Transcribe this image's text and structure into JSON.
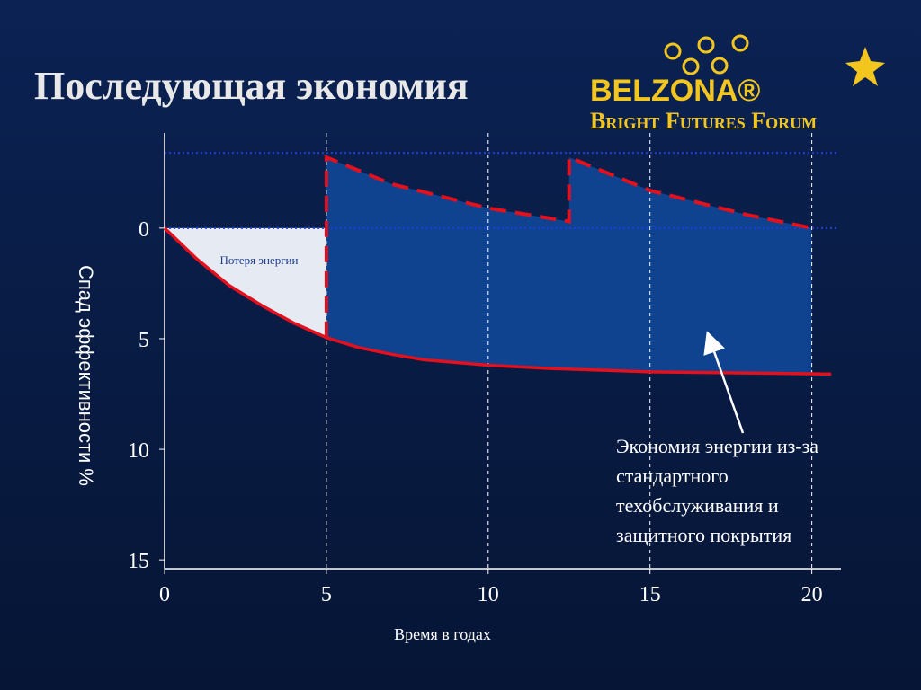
{
  "header": {
    "title": "Последующая экономия",
    "logo": "BELZONA®",
    "tagline": "Bright Futures Forum"
  },
  "chart_data": {
    "type": "line",
    "x_label": "Время в годах",
    "y_label": "Спад эффективности %",
    "xlim": [
      0,
      20.9
    ],
    "xticks": [
      0,
      5,
      10,
      15,
      20
    ],
    "ylim": [
      -4.3,
      15.4
    ],
    "yticks": [
      0,
      5,
      10,
      15
    ],
    "y_inverted": true,
    "x_grid": true,
    "hlines": [
      -3.4,
      0
    ],
    "series": [
      {
        "color": "#e3101e",
        "style": "solid",
        "x": [
          0,
          1,
          2,
          3,
          4,
          5,
          6,
          7,
          8,
          10,
          12,
          15,
          18,
          20.6
        ],
        "values": [
          0,
          1.4,
          2.6,
          3.5,
          4.3,
          4.95,
          5.4,
          5.7,
          5.95,
          6.2,
          6.35,
          6.5,
          6.55,
          6.6
        ]
      },
      {
        "color": "#e3101e",
        "style": "dashed",
        "x": [
          5,
          5,
          7,
          10,
          12.5,
          12.5,
          15,
          18,
          20
        ],
        "values": [
          4.95,
          -3.2,
          -2,
          -0.9,
          -0.3,
          -3.2,
          -1.7,
          -0.6,
          0
        ]
      }
    ],
    "fill_savings": "#0f4390",
    "fill_loss": "#e6eaf3",
    "annotations": [
      {
        "text": "Потеря энергии"
      },
      {
        "lines": [
          "Экономия энергии из-за",
          "стандартного",
          "техобслуживания и",
          "защитного покрытия"
        ]
      }
    ]
  }
}
